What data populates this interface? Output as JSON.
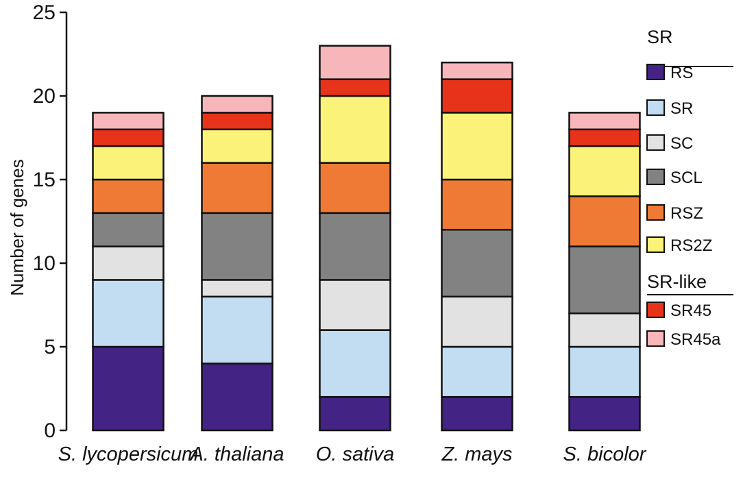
{
  "chart_data": {
    "type": "bar",
    "stacked": true,
    "title": "",
    "xlabel": "",
    "ylabel": "Number of genes",
    "ylim": [
      0,
      25
    ],
    "yticks": [
      0,
      5,
      10,
      15,
      20,
      25
    ],
    "grid": false,
    "legend_position": "right",
    "categories": [
      "S. lycopersicum",
      "A. thaliana",
      "O. sativa",
      "Z. mays",
      "S. bicolor"
    ],
    "series": [
      {
        "name": "RS",
        "group": "SR",
        "color": "#432383",
        "values": [
          5,
          4,
          2,
          2,
          2
        ]
      },
      {
        "name": "SR",
        "group": "SR",
        "color": "#c2dcf2",
        "values": [
          4,
          4,
          4,
          3,
          3
        ]
      },
      {
        "name": "SC",
        "group": "SR",
        "color": "#e2e2e2",
        "values": [
          2,
          1,
          3,
          3,
          2
        ]
      },
      {
        "name": "SCL",
        "group": "SR",
        "color": "#828282",
        "values": [
          2,
          4,
          4,
          4,
          4
        ]
      },
      {
        "name": "RSZ",
        "group": "SR",
        "color": "#ee7a35",
        "values": [
          2,
          3,
          3,
          3,
          3
        ]
      },
      {
        "name": "RS2Z",
        "group": "SR",
        "color": "#fbf27a",
        "values": [
          2,
          2,
          4,
          4,
          3
        ]
      },
      {
        "name": "SR45",
        "group": "SR-like",
        "color": "#e6331a",
        "values": [
          1,
          1,
          1,
          2,
          1
        ]
      },
      {
        "name": "SR45a",
        "group": "SR-like",
        "color": "#f6b6ba",
        "values": [
          1,
          1,
          2,
          1,
          1
        ]
      }
    ],
    "legend_groups": [
      {
        "title": "SR",
        "items": [
          "RS",
          "SR",
          "SC",
          "SCL",
          "RSZ",
          "RS2Z"
        ]
      },
      {
        "title": "SR-like",
        "items": [
          "SR45",
          "SR45a"
        ]
      }
    ]
  }
}
